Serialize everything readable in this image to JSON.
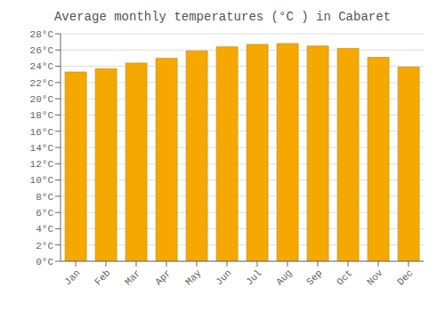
{
  "chart_data": {
    "type": "bar",
    "title": "Average monthly temperatures (°C ) in Cabaret",
    "categories": [
      "Jan",
      "Feb",
      "Mar",
      "Apr",
      "May",
      "Jun",
      "Jul",
      "Aug",
      "Sep",
      "Oct",
      "Nov",
      "Dec"
    ],
    "values": [
      23.3,
      23.7,
      24.4,
      25.0,
      25.9,
      26.4,
      26.7,
      26.8,
      26.5,
      26.2,
      25.1,
      23.9
    ],
    "color": "#F5A800",
    "ylim": [
      0,
      28
    ],
    "yticks": [
      {
        "value": 0,
        "label": "0°C"
      },
      {
        "value": 2,
        "label": "2°C"
      },
      {
        "value": 4,
        "label": "4°C"
      },
      {
        "value": 6,
        "label": "6°C"
      },
      {
        "value": 8,
        "label": "8°C"
      },
      {
        "value": 10,
        "label": "10°C"
      },
      {
        "value": 12,
        "label": "12°C"
      },
      {
        "value": 14,
        "label": "14°C"
      },
      {
        "value": 16,
        "label": "16°C"
      },
      {
        "value": 18,
        "label": "18°C"
      },
      {
        "value": 20,
        "label": "20°C"
      },
      {
        "value": 22,
        "label": "22°C"
      },
      {
        "value": 24,
        "label": "24°C"
      },
      {
        "value": 26,
        "label": "26°C"
      },
      {
        "value": 28,
        "label": "28°C"
      }
    ],
    "grid": true
  }
}
